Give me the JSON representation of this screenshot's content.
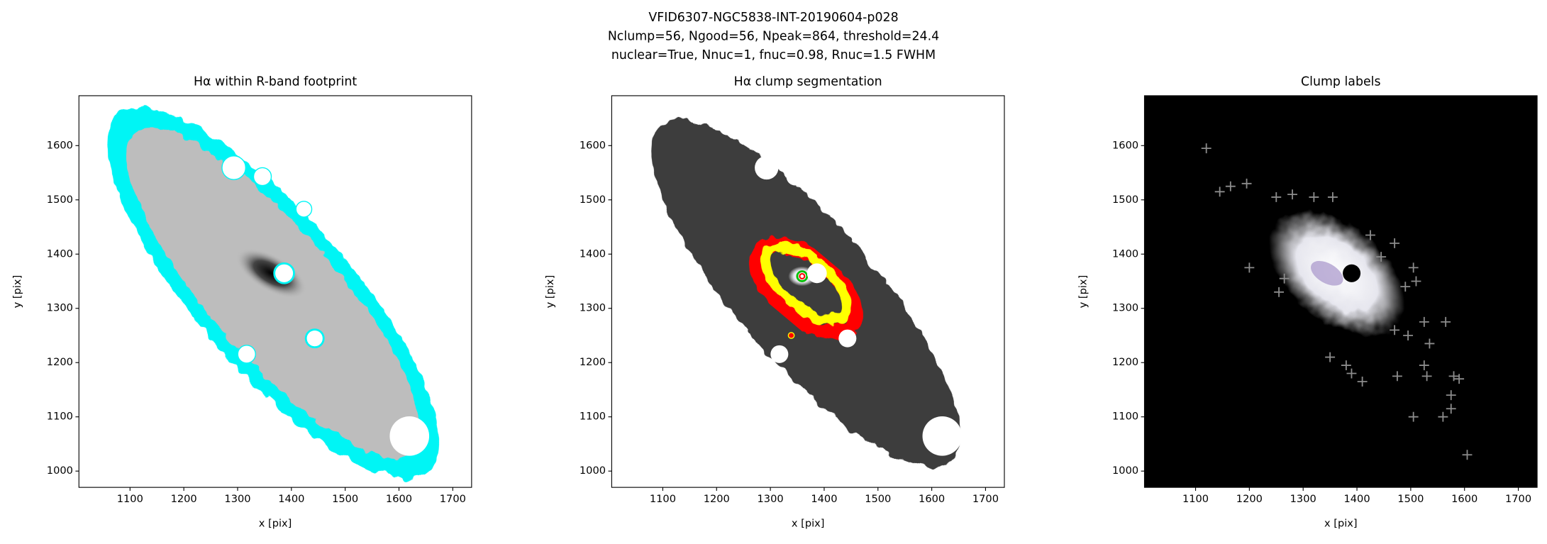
{
  "suptitle": [
    "VFID6307-NGC5838-INT-20190604-p028",
    "Nclump=56, Ngood=56, Npeak=864, threshold=24.4",
    "nuclear=True, Nnuc=1, fnuc=0.98, Rnuc=1.5 FWHM"
  ],
  "chart_data": [
    {
      "type": "image",
      "title": "Hα within R-band footprint",
      "x_label": "x [pix]",
      "y_label": "y [pix]",
      "xlim": [
        1005,
        1735
      ],
      "ylim": [
        970,
        1692
      ],
      "xticks": [
        1100,
        1200,
        1300,
        1400,
        1500,
        1600,
        1700
      ],
      "yticks": [
        1000,
        1100,
        1200,
        1300,
        1400,
        1500,
        1600
      ]
    },
    {
      "type": "image",
      "title": "Hα clump segmentation",
      "x_label": "x [pix]",
      "y_label": "y [pix]",
      "xlim": [
        1005,
        1735
      ],
      "ylim": [
        970,
        1692
      ],
      "xticks": [
        1100,
        1200,
        1300,
        1400,
        1500,
        1600,
        1700
      ],
      "yticks": [
        1000,
        1100,
        1200,
        1300,
        1400,
        1500,
        1600
      ]
    },
    {
      "type": "scatter",
      "title": "Clump labels",
      "x_label": "x [pix]",
      "y_label": "y [pix]",
      "xlim": [
        1005,
        1735
      ],
      "ylim": [
        970,
        1692
      ],
      "xticks": [
        1100,
        1200,
        1300,
        1400,
        1500,
        1600,
        1700
      ],
      "yticks": [
        1000,
        1100,
        1200,
        1300,
        1400,
        1500,
        1600
      ],
      "series": [
        {
          "color": "#8c8c8c",
          "x": [
            1120,
            1165,
            1145,
            1195,
            1250,
            1280,
            1320,
            1355,
            1200,
            1255,
            1265,
            1425,
            1470,
            1445,
            1505,
            1490,
            1510,
            1525,
            1565,
            1470,
            1495,
            1535,
            1350,
            1380,
            1390,
            1410,
            1475,
            1525,
            1530,
            1580,
            1590,
            1575,
            1575,
            1560,
            1505,
            1605
          ],
          "values": [
            1595,
            1525,
            1515,
            1530,
            1505,
            1510,
            1505,
            1505,
            1375,
            1330,
            1355,
            1435,
            1420,
            1395,
            1375,
            1340,
            1350,
            1275,
            1275,
            1260,
            1250,
            1235,
            1210,
            1195,
            1180,
            1165,
            1175,
            1195,
            1175,
            1175,
            1170,
            1140,
            1115,
            1100,
            1100,
            1030
          ]
        }
      ]
    }
  ]
}
